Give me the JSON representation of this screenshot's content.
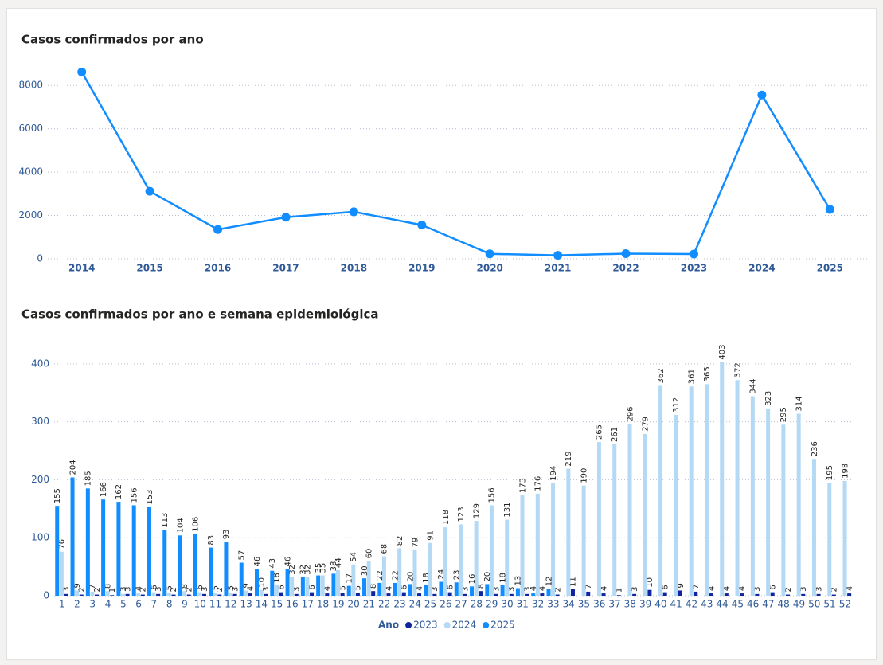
{
  "chart_data": [
    {
      "type": "line",
      "title": "Casos confirmados por ano",
      "categories": [
        "2014",
        "2015",
        "2016",
        "2017",
        "2018",
        "2019",
        "2020",
        "2021",
        "2022",
        "2023",
        "2024",
        "2025"
      ],
      "values": [
        8620,
        3120,
        1350,
        1920,
        2170,
        1560,
        230,
        160,
        240,
        220,
        7560,
        2280
      ],
      "color": "#118dff",
      "ylim": [
        0,
        9000
      ],
      "yticks": [
        0,
        2000,
        4000,
        6000,
        8000
      ],
      "grid": true
    },
    {
      "type": "bar",
      "title": "Casos confirmados por ano e semana epidemiológica",
      "categories": [
        "1",
        "2",
        "3",
        "4",
        "5",
        "6",
        "7",
        "8",
        "9",
        "10",
        "11",
        "12",
        "13",
        "14",
        "15",
        "16",
        "17",
        "18",
        "19",
        "20",
        "21",
        "22",
        "23",
        "24",
        "25",
        "26",
        "27",
        "28",
        "29",
        "30",
        "31",
        "32",
        "33",
        "34",
        "35",
        "36",
        "37",
        "38",
        "39",
        "40",
        "41",
        "42",
        "43",
        "44",
        "45",
        "46",
        "47",
        "48",
        "49",
        "50",
        "51",
        "52"
      ],
      "legend_title": "Ano",
      "series": [
        {
          "name": "2023",
          "color": "#12239e",
          "values": [
            3,
            2,
            2,
            1,
            3,
            2,
            3,
            2,
            2,
            3,
            2,
            3,
            4,
            3,
            6,
            3,
            6,
            4,
            5,
            5,
            8,
            4,
            6,
            4,
            3,
            6,
            3,
            8,
            3,
            3,
            3,
            4,
            2,
            11,
            7,
            4,
            1,
            3,
            10,
            6,
            9,
            7,
            4,
            4,
            4,
            3,
            6,
            2,
            3,
            3,
            2,
            4
          ]
        },
        {
          "name": "2024",
          "color": "#b4d9f5",
          "values": [
            76,
            9,
            7,
            8,
            3,
            4,
            6,
            5,
            8,
            6,
            5,
            5,
            9,
            10,
            18,
            32,
            32,
            35,
            44,
            54,
            60,
            68,
            82,
            79,
            91,
            118,
            123,
            129,
            156,
            131,
            173,
            176,
            194,
            219,
            190,
            265,
            261,
            296,
            279,
            362,
            312,
            361,
            365,
            403,
            372,
            344,
            323,
            295,
            314,
            236,
            195,
            198
          ]
        },
        {
          "name": "2025",
          "color": "#118dff",
          "values": [
            155,
            204,
            185,
            166,
            162,
            156,
            153,
            113,
            104,
            106,
            83,
            93,
            57,
            46,
            43,
            46,
            32,
            35,
            38,
            17,
            30,
            22,
            22,
            20,
            18,
            24,
            23,
            16,
            20,
            18,
            13,
            4,
            12,
            null,
            null,
            null,
            null,
            null,
            null,
            null,
            null,
            null,
            null,
            null,
            null,
            null,
            null,
            null,
            null,
            null,
            null,
            null
          ]
        }
      ],
      "ylim": [
        0,
        430
      ],
      "yticks": [
        0,
        100,
        200,
        300,
        400
      ],
      "grid": true
    }
  ]
}
